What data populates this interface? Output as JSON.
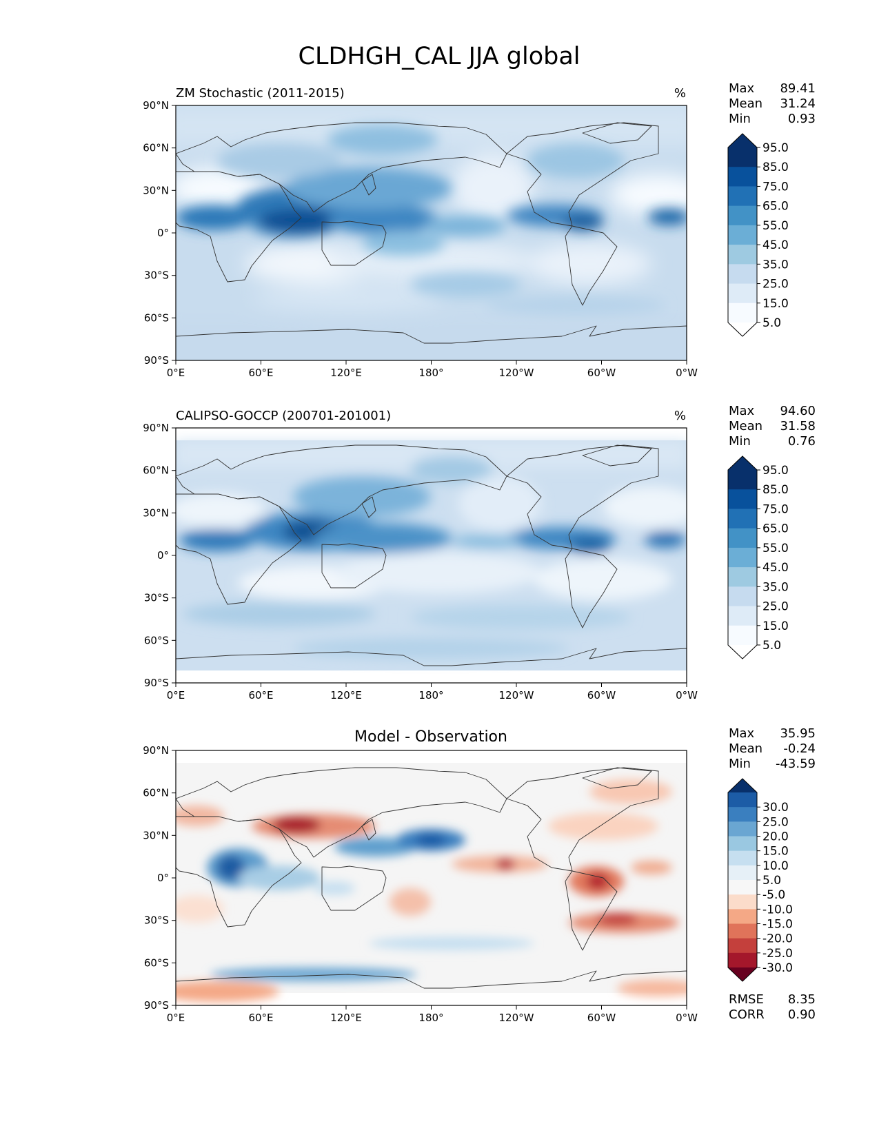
{
  "figure": {
    "title": "CLDHGH_CAL JJA global"
  },
  "axes": {
    "lat_ticks": [
      "90°N",
      "60°N",
      "30°N",
      "0°",
      "30°S",
      "60°S",
      "90°S"
    ],
    "lon_ticks": [
      "0°E",
      "60°E",
      "120°E",
      "180°",
      "120°W",
      "60°W",
      "0°W"
    ]
  },
  "panels": [
    {
      "title": "ZM Stochastic (2011-2015)",
      "units": "%",
      "stats": [
        {
          "label": "Max",
          "value": "89.41"
        },
        {
          "label": "Mean",
          "value": "31.24"
        },
        {
          "label": "Min",
          "value": "0.93"
        }
      ],
      "colorbar": {
        "labels": [
          "95.0",
          "85.0",
          "75.0",
          "65.0",
          "55.0",
          "45.0",
          "35.0",
          "25.0",
          "15.0",
          "5.0"
        ],
        "colors": [
          "#08306b",
          "#08519c",
          "#2171b5",
          "#4292c6",
          "#6baed6",
          "#9ecae1",
          "#c6dbef",
          "#deebf7",
          "#f7fbff"
        ],
        "extend_top": "#08306b",
        "extend_bottom": "#ffffff"
      }
    },
    {
      "title": "CALIPSO-GOCCP (200701-201001)",
      "units": "%",
      "stats": [
        {
          "label": "Max",
          "value": "94.60"
        },
        {
          "label": "Mean",
          "value": "31.58"
        },
        {
          "label": "Min",
          "value": "0.76"
        }
      ],
      "colorbar": {
        "labels": [
          "95.0",
          "85.0",
          "75.0",
          "65.0",
          "55.0",
          "45.0",
          "35.0",
          "25.0",
          "15.0",
          "5.0"
        ],
        "colors": [
          "#08306b",
          "#08519c",
          "#2171b5",
          "#4292c6",
          "#6baed6",
          "#9ecae1",
          "#c6dbef",
          "#deebf7",
          "#f7fbff"
        ],
        "extend_top": "#08306b",
        "extend_bottom": "#ffffff"
      }
    },
    {
      "title": "Model - Observation",
      "units": "",
      "stats": [
        {
          "label": "Max",
          "value": "35.95"
        },
        {
          "label": "Mean",
          "value": "-0.24"
        },
        {
          "label": "Min",
          "value": "-43.59"
        }
      ],
      "bottom_stats": [
        {
          "label": "RMSE",
          "value": "8.35"
        },
        {
          "label": "CORR",
          "value": "0.90"
        }
      ],
      "colorbar": {
        "labels": [
          "30.0",
          "25.0",
          "20.0",
          "15.0",
          "10.0",
          "5.0",
          "-5.0",
          "-10.0",
          "-15.0",
          "-20.0",
          "-25.0",
          "-30.0"
        ],
        "colors": [
          "#1c5ca6",
          "#3a7fbf",
          "#6aa6d2",
          "#9ac8e1",
          "#c6dff0",
          "#e6f0f7",
          "#f7f7f7",
          "#fbdcca",
          "#f4a886",
          "#e0735a",
          "#c4403c",
          "#a4172b"
        ],
        "extend_top": "#08306b",
        "extend_bottom": "#67001f"
      }
    }
  ]
}
